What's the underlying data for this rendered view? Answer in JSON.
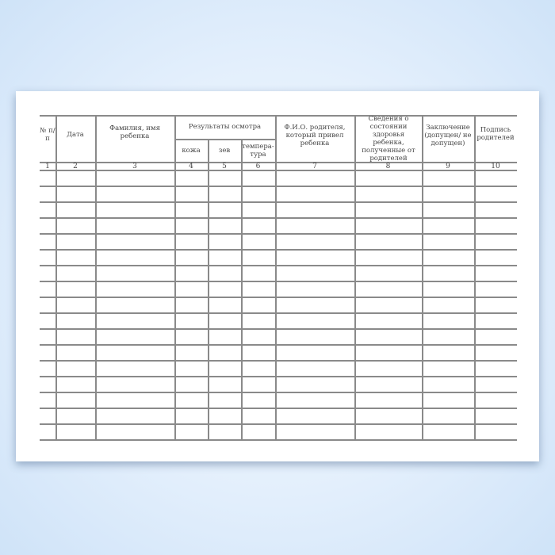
{
  "document": {
    "headers": {
      "num": "№ п/п",
      "date": "Дата",
      "name": "Фамилия, имя ребенка",
      "exam": "Результаты осмотра",
      "skin": "кожа",
      "throat": "зев",
      "temp": "темпера-тура",
      "parent": "Ф.И.О. родителя, который привел ребенка",
      "health": "Сведения о состоянии здоровья ребенка, полученные от родителей",
      "conclusion": "Заключение (допущен/ не допущен)",
      "signature": "Подпись родителей"
    },
    "column_numbers": [
      "1",
      "2",
      "3",
      "4",
      "5",
      "6",
      "7",
      "8",
      "9",
      "10"
    ],
    "colors": {
      "background": "#d6e8fa",
      "page": "#ffffff",
      "lines": "#8a8a8a"
    }
  }
}
